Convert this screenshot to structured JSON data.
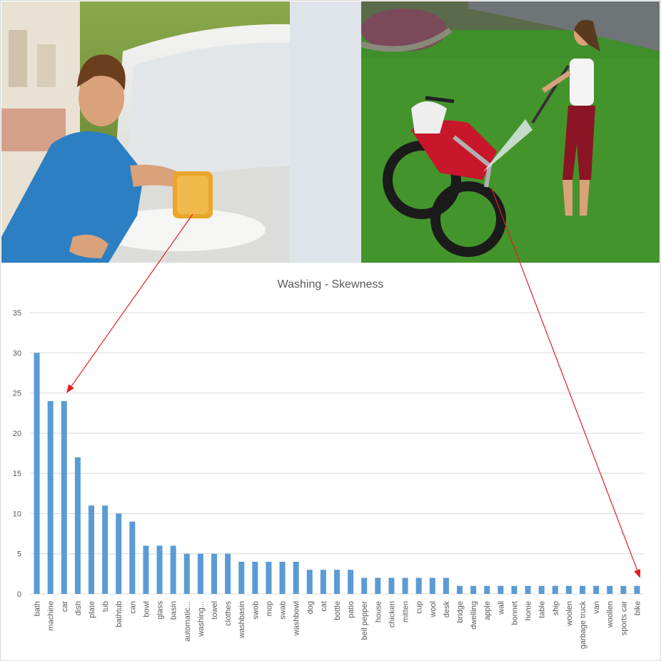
{
  "chart_data": {
    "type": "bar",
    "title": "Washing - Skewness",
    "xlabel": "",
    "ylabel": "",
    "ylim": [
      0,
      35
    ],
    "yticks": [
      0,
      5,
      10,
      15,
      20,
      25,
      30,
      35
    ],
    "grid": true,
    "legend": "none",
    "bar_color": "#5b9bd5",
    "categories": [
      "bath",
      "machine",
      "car",
      "dish",
      "plate",
      "tub",
      "bathtub",
      "can",
      "bowl",
      "glass",
      "basin",
      "automatic...",
      "washing...",
      "towel",
      "clothes",
      "washbasin",
      "swob",
      "mop",
      "swab",
      "washbowl",
      "dog",
      "cat",
      "bottle",
      "patio",
      "bell pepper",
      "house",
      "chicken",
      "mitten",
      "cup",
      "wool",
      "desk",
      "bridge",
      "dwelling",
      "apple",
      "wall",
      "bonnet",
      "home",
      "table",
      "ship",
      "woolen",
      "garbage truck",
      "van",
      "woollen",
      "sports car",
      "bike"
    ],
    "values": [
      30,
      24,
      24,
      17,
      11,
      11,
      10,
      9,
      6,
      6,
      6,
      5,
      5,
      5,
      5,
      4,
      4,
      4,
      4,
      4,
      3,
      3,
      3,
      3,
      2,
      2,
      2,
      2,
      2,
      2,
      2,
      1,
      1,
      1,
      1,
      1,
      1,
      1,
      1,
      1,
      1,
      1,
      1,
      1,
      1
    ],
    "annotations": [
      {
        "from": "photo-left-sponge",
        "to_category": "car",
        "color": "#e02020"
      },
      {
        "from": "photo-right-spray",
        "to_category": "bike",
        "color": "#e02020"
      }
    ]
  },
  "photos": {
    "left": "boy-washing-car-image",
    "right": "woman-washing-motorbike-image"
  }
}
